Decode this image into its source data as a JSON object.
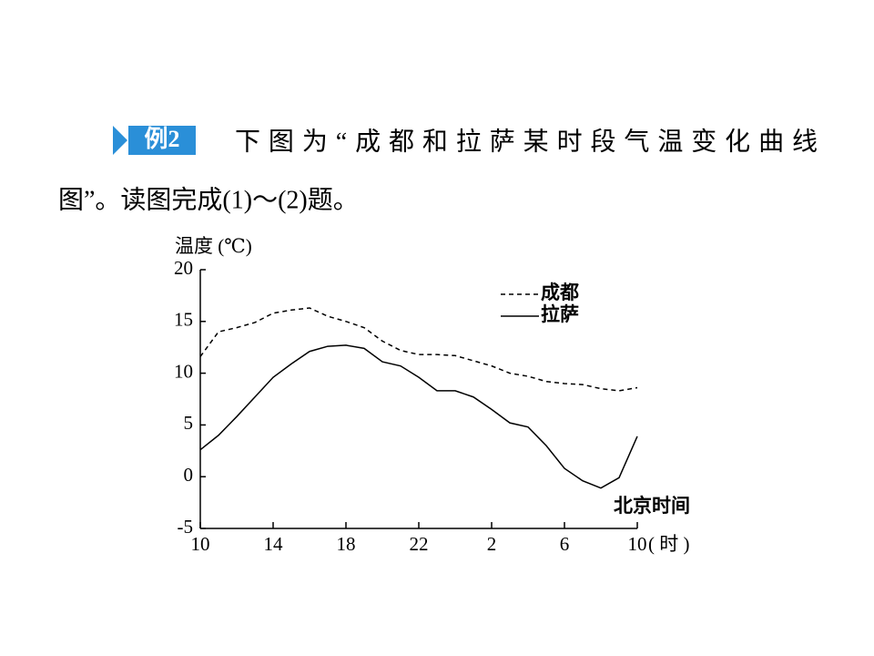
{
  "question": {
    "badge": "例2",
    "line1": "下图为“成都和拉萨某时段气温变化曲线",
    "line2": "图”。读图完成(1)～(2)题。"
  },
  "chart_data": {
    "type": "line",
    "y_label": "温度 (℃)",
    "x_label": "( 时 )",
    "annotation": "北京时间",
    "x": [
      0,
      1,
      2,
      3,
      4,
      5,
      6,
      7,
      8,
      9,
      10,
      11,
      12,
      13,
      14,
      15,
      16,
      17,
      18,
      19,
      20,
      21,
      22,
      23,
      24
    ],
    "series": [
      {
        "name": "成都",
        "color": "#000000",
        "style": "dashed",
        "values": [
          11.6,
          14.0,
          14.4,
          14.9,
          15.8,
          16.1,
          16.3,
          15.5,
          15.0,
          14.4,
          13.1,
          12.2,
          11.8,
          11.8,
          11.7,
          11.2,
          10.7,
          10.0,
          9.7,
          9.2,
          9.0,
          8.9,
          8.5,
          8.3,
          8.6
        ]
      },
      {
        "name": "拉萨",
        "color": "#000000",
        "style": "solid",
        "values": [
          2.6,
          4.0,
          5.8,
          7.7,
          9.6,
          10.9,
          12.1,
          12.6,
          12.7,
          12.4,
          11.1,
          10.7,
          9.6,
          8.3,
          8.3,
          7.7,
          6.5,
          5.2,
          4.8,
          3.0,
          0.8,
          -0.4,
          -1.1,
          -0.1,
          3.9
        ]
      }
    ],
    "xlim": [
      0,
      24
    ],
    "xticks": [
      {
        "value": 0,
        "label": "10"
      },
      {
        "value": 4,
        "label": "14"
      },
      {
        "value": 8,
        "label": "18"
      },
      {
        "value": 12,
        "label": "22"
      },
      {
        "value": 16,
        "label": "2"
      },
      {
        "value": 20,
        "label": "6"
      },
      {
        "value": 24,
        "label": "10"
      }
    ],
    "ylim": [
      -5,
      20
    ],
    "yticks": [
      -5,
      0,
      5,
      10,
      15,
      20
    ],
    "legend": "top-right"
  }
}
